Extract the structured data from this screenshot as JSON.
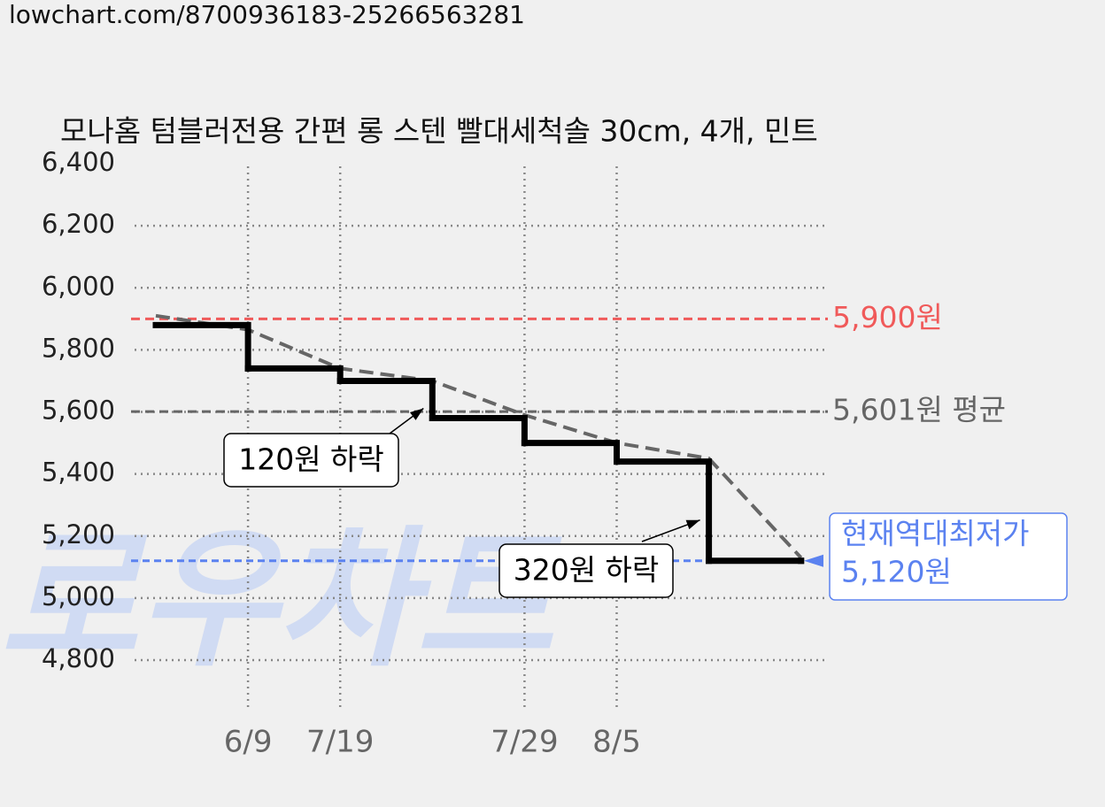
{
  "url": "lowchart.com/8700936183-25266563281",
  "watermark": "로우차트",
  "chart_data": {
    "type": "step",
    "title": "모나홈 텀블러전용 간편 롱 스텐 빨대세척솔 30cm, 4개, 민트",
    "categories": [
      null,
      "6/9",
      "7/19",
      null,
      "7/29",
      "8/5",
      null,
      null
    ],
    "values": [
      5880,
      5740,
      5700,
      5580,
      5500,
      5440,
      5120,
      5120
    ],
    "color": "#000000",
    "trend_values": [
      5910,
      5865,
      5740,
      5700,
      5590,
      5500,
      5450,
      5130
    ],
    "trend_color": "#666666",
    "ylim": [
      4800,
      6400
    ],
    "yticks": [
      {
        "value": 4800,
        "label": "4,800"
      },
      {
        "value": 5000,
        "label": "5,000"
      },
      {
        "value": 5200,
        "label": "5,200"
      },
      {
        "value": 5400,
        "label": "5,400"
      },
      {
        "value": 5600,
        "label": "5,600"
      },
      {
        "value": 5800,
        "label": "5,800"
      },
      {
        "value": 6000,
        "label": "6,000"
      },
      {
        "value": 6200,
        "label": "6,200"
      },
      {
        "value": 6400,
        "label": "6,400"
      }
    ],
    "grid": true,
    "reference_lines": [
      {
        "value": 5900,
        "label": "5,900원",
        "color": "#f05a5a"
      },
      {
        "value": 5601,
        "label": "5,601원 평균",
        "color": "#666666"
      },
      {
        "value": 5120,
        "label": "5,120원",
        "note": "현재역대최저가",
        "color": "#5b82f0"
      }
    ],
    "annotations": [
      {
        "text": "120원 하락",
        "index": 3
      },
      {
        "text": "320원 하락",
        "index": 6
      }
    ]
  }
}
